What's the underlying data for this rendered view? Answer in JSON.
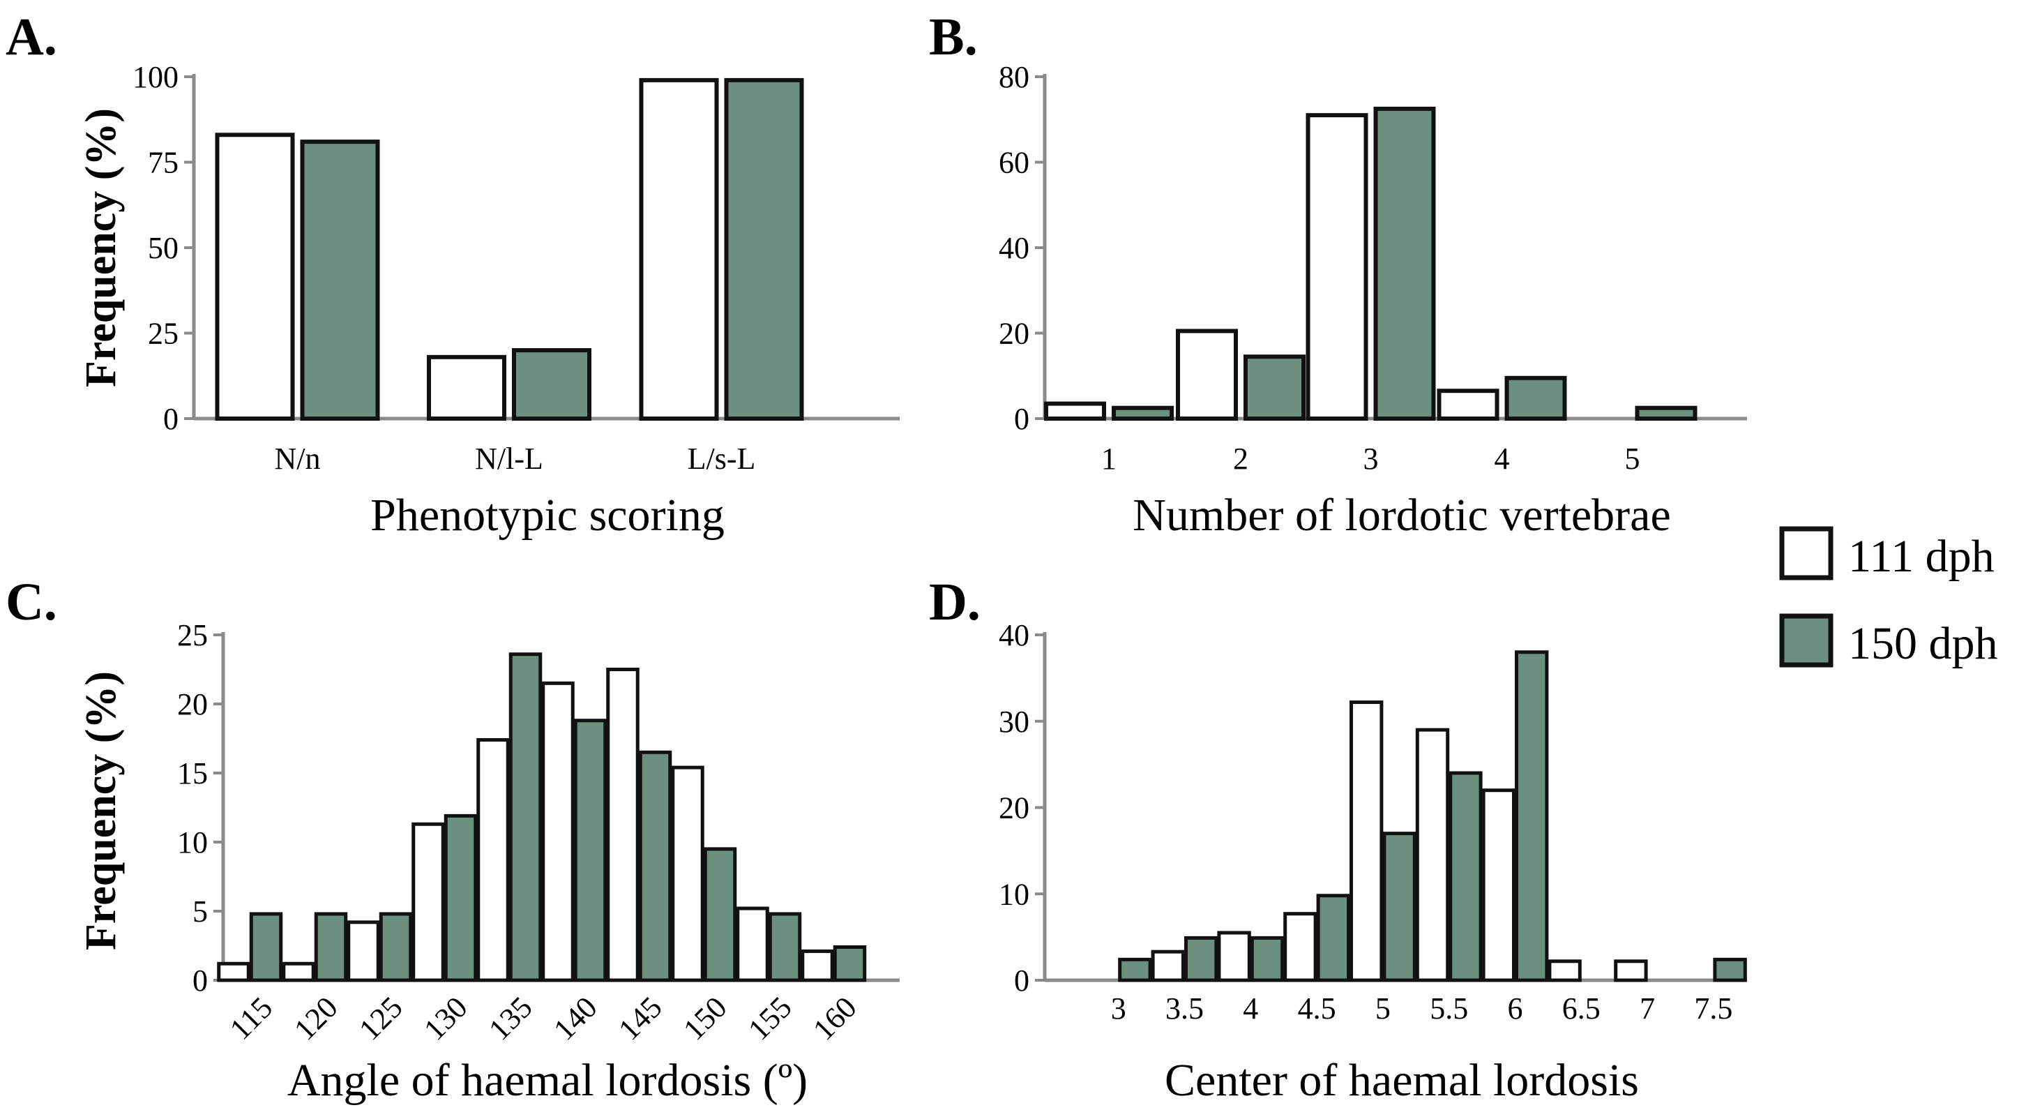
{
  "colors": {
    "series_111": "#ffffff",
    "series_150": "#6b9080",
    "outline": "#111111",
    "axis": "#8a8a8a"
  },
  "legend": {
    "items": [
      {
        "label": "111 dph",
        "color": "#ffffff"
      },
      {
        "label": "150 dph",
        "color": "#6b9080"
      }
    ]
  },
  "chart_data": [
    {
      "id": "A",
      "panel_label": "A.",
      "type": "bar",
      "title": "",
      "xlabel": "Phenotypic scoring",
      "ylabel": "Frequency (%)",
      "ylim": [
        0,
        100
      ],
      "yticks": [
        0,
        25,
        50,
        75,
        100
      ],
      "categories": [
        "N/n",
        "N/l-L",
        "L/s-L"
      ],
      "series": [
        {
          "name": "111 dph",
          "values": [
            83,
            18,
            99
          ]
        },
        {
          "name": "150 dph",
          "values": [
            81,
            20,
            99
          ]
        }
      ]
    },
    {
      "id": "B",
      "panel_label": "B.",
      "type": "bar",
      "title": "",
      "xlabel": "Number of lordotic vertebrae",
      "ylabel": "",
      "ylim": [
        0,
        80
      ],
      "yticks": [
        0,
        20,
        40,
        60,
        80
      ],
      "categories": [
        "1",
        "2",
        "3",
        "4",
        "5"
      ],
      "series": [
        {
          "name": "111 dph",
          "values": [
            3.5,
            20.5,
            71,
            6.5,
            0
          ]
        },
        {
          "name": "150 dph",
          "values": [
            2.5,
            14.5,
            72.5,
            9.5,
            2.5
          ]
        }
      ]
    },
    {
      "id": "C",
      "panel_label": "C.",
      "type": "bar",
      "title": "",
      "xlabel": "Angle of haemal lordosis (º)",
      "ylabel": "Frequency (%)",
      "ylim": [
        0,
        25
      ],
      "yticks": [
        0,
        5,
        10,
        15,
        20,
        25
      ],
      "categories": [
        "115",
        "120",
        "125",
        "130",
        "135",
        "140",
        "145",
        "150",
        "155",
        "160"
      ],
      "series": [
        {
          "name": "111 dph",
          "values": [
            1.2,
            1.2,
            4.2,
            11.3,
            17.4,
            21.5,
            22.5,
            15.4,
            5.2,
            2.1
          ]
        },
        {
          "name": "150 dph",
          "values": [
            4.8,
            4.8,
            4.8,
            11.9,
            23.6,
            18.8,
            16.5,
            9.5,
            4.8,
            2.4
          ]
        }
      ]
    },
    {
      "id": "D",
      "panel_label": "D.",
      "type": "bar",
      "title": "",
      "xlabel": "Center of haemal lordosis",
      "ylabel": "",
      "ylim": [
        0,
        40
      ],
      "yticks": [
        0,
        10,
        20,
        30,
        40
      ],
      "categories": [
        "3",
        "3.5",
        "4",
        "4.5",
        "5",
        "5.5",
        "6",
        "6.5",
        "7",
        "7.5"
      ],
      "series": [
        {
          "name": "111 dph",
          "values": [
            0,
            3.3,
            5.5,
            7.7,
            32.2,
            29,
            22,
            2.2,
            2.2,
            0
          ]
        },
        {
          "name": "150 dph",
          "values": [
            2.4,
            4.9,
            4.9,
            9.8,
            17,
            24,
            38,
            0,
            0,
            2.4
          ]
        }
      ]
    }
  ]
}
